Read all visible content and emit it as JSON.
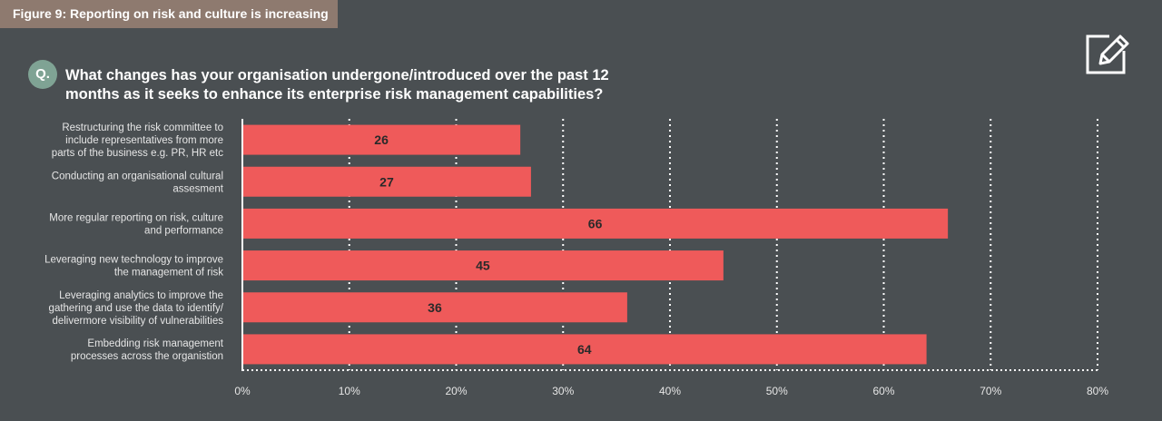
{
  "figure_title": "Figure 9: Reporting on risk and culture is increasing",
  "question_badge": "Q.",
  "question_lines": [
    "What changes has your organisation undergone/introduced over the past 12",
    "months as it seeks to enhance its enterprise risk management capabilities?"
  ],
  "icons": {
    "header": "edit-pencil-icon"
  },
  "colors": {
    "background": "#4a4f52",
    "bar": "#ef5a5a",
    "title_bg": "#8e7a6f",
    "badge": "#7fa394"
  },
  "chart_data": {
    "type": "bar",
    "orientation": "horizontal",
    "categories": [
      [
        "Restructuring the risk committee to",
        "include representatives from more",
        "parts of the business e.g. PR, HR etc"
      ],
      [
        "Conducting an organisational cultural",
        "assesment"
      ],
      [
        "More regular reporting on risk, culture",
        "and performance"
      ],
      [
        "Leveraging new technology to improve",
        "the management of risk"
      ],
      [
        "Leveraging analytics to improve the",
        "gathering and use the data to identify/",
        "delivermore visibility of vulnerabilities"
      ],
      [
        "Embedding risk management",
        "processes across the organistion"
      ]
    ],
    "values": [
      26,
      27,
      66,
      45,
      36,
      64
    ],
    "xlim": [
      0,
      80
    ],
    "x_ticks": [
      0,
      10,
      20,
      30,
      40,
      50,
      60,
      70,
      80
    ],
    "tick_suffix": "%",
    "grid": "vertical-dotted"
  }
}
